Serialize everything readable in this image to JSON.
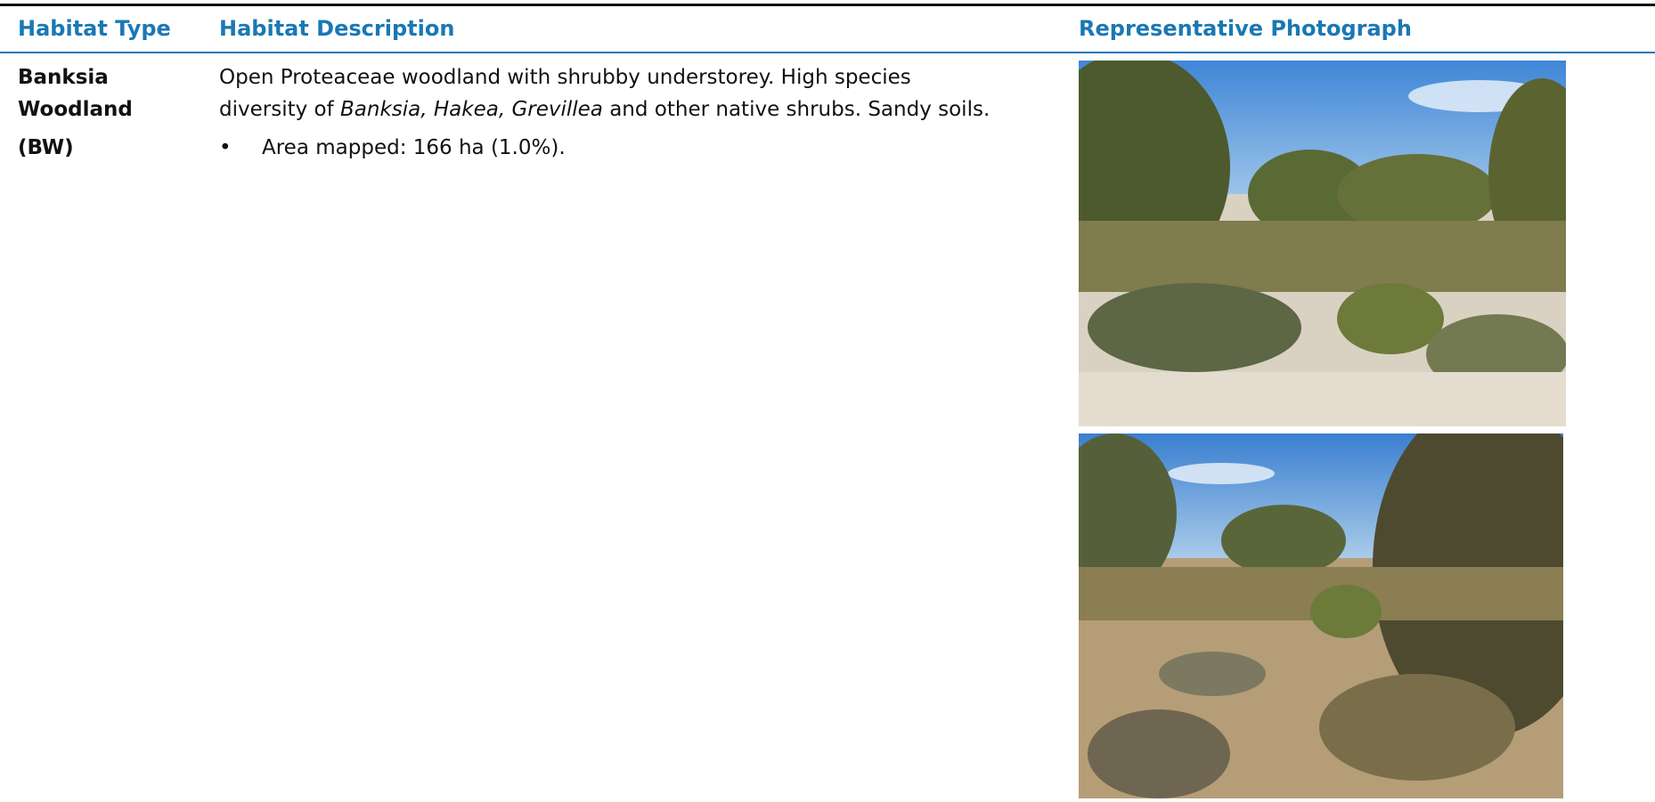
{
  "table": {
    "columns": [
      "Habitat Type",
      "Habitat Description",
      "Representative Photograph"
    ],
    "rows": [
      {
        "habitat_type": [
          "Banksia",
          "Woodland"
        ],
        "code": "(BW)",
        "description": [
          "Open Proteaceae woodland with shrubby understorey. High species",
          "diversity of ",
          "Banksia, Hakea, Grevillea",
          " and other native shrubs. Sandy soils."
        ],
        "bullets": [
          "Area mapped: 166 ha (1.0%)."
        ]
      }
    ]
  }
}
